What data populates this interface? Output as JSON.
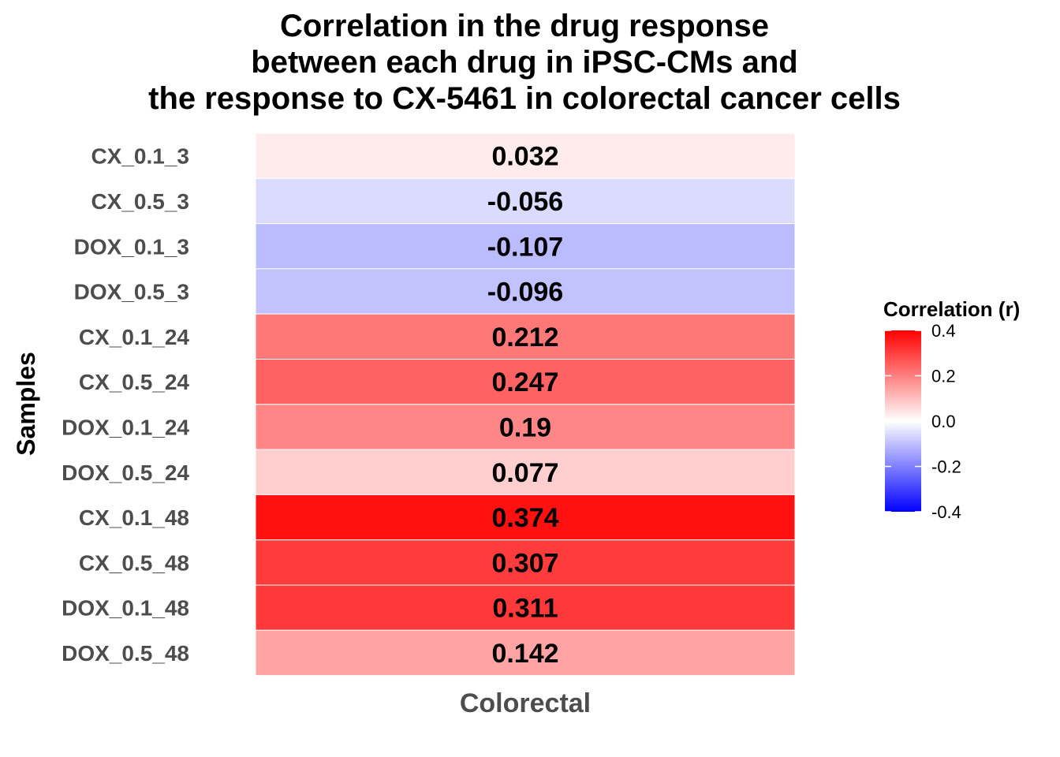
{
  "chart_data": {
    "type": "heatmap",
    "title_lines": [
      "Correlation in the drug response",
      "between each drug in iPSC-CMs and",
      "the response to CX-5461 in colorectal cancer cells"
    ],
    "xlabel": "",
    "ylabel": "Samples",
    "x_categories": [
      "Colorectal"
    ],
    "y_categories": [
      "CX_0.1_3",
      "CX_0.5_3",
      "DOX_0.1_3",
      "DOX_0.5_3",
      "CX_0.1_24",
      "CX_0.5_24",
      "DOX_0.1_24",
      "DOX_0.5_24",
      "CX_0.1_48",
      "CX_0.5_48",
      "DOX_0.1_48",
      "DOX_0.5_48"
    ],
    "values": [
      0.032,
      -0.056,
      -0.107,
      -0.096,
      0.212,
      0.247,
      0.19,
      0.077,
      0.374,
      0.307,
      0.311,
      0.142
    ],
    "value_labels": [
      "0.032",
      "-0.056",
      "-0.107",
      "-0.096",
      "0.212",
      "0.247",
      "0.19",
      "0.077",
      "0.374",
      "0.307",
      "0.311",
      "0.142"
    ],
    "color_scale": {
      "low": "#0000ff",
      "mid": "#ffffff",
      "high": "#ff0000",
      "limits": [
        -0.4,
        0.4
      ]
    },
    "legend": {
      "title": "Correlation (r)",
      "ticks": [
        0.4,
        0.2,
        0.0,
        -0.2,
        -0.4
      ],
      "tick_labels": [
        "0.4",
        "0.2",
        "0.0",
        "-0.2",
        "-0.4"
      ],
      "position": "right"
    }
  }
}
